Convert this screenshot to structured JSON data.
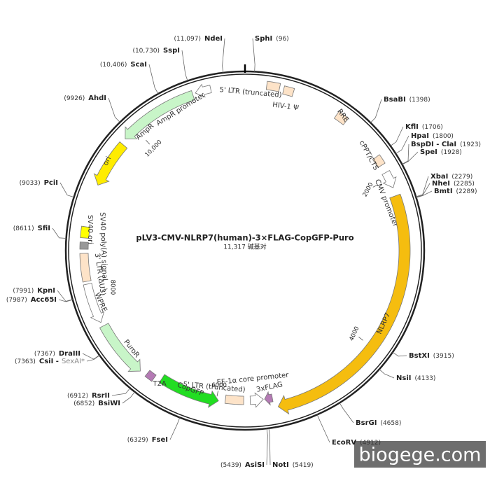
{
  "title": "pLV3-CMV-NLRP7(human)-3×FLAG-CopGFP-Puro",
  "size": "11,317 碱基对",
  "watermark": "biogege.com",
  "sites": [
    {
      "name": "SphI",
      "position": "(96)"
    },
    {
      "name": "BsaBI",
      "position": "(1398)"
    },
    {
      "name": "KflI",
      "position": "(1706)"
    },
    {
      "name": "HpaI",
      "position": "(1800)"
    },
    {
      "name": "BspDI - ClaI",
      "position": "(1923)"
    },
    {
      "name": "SpeI",
      "position": "(1928)"
    },
    {
      "name": "XbaI",
      "position": "(2279)"
    },
    {
      "name": "NheI",
      "position": "(2285)"
    },
    {
      "name": "BmtI",
      "position": "(2289)"
    },
    {
      "name": "BstXI",
      "position": "(3915)"
    },
    {
      "name": "NsiI",
      "position": "(4133)"
    },
    {
      "name": "BsrGI",
      "position": "(4658)"
    },
    {
      "name": "EcoRV",
      "position": "(4912)"
    },
    {
      "name": "NotI",
      "position": "(5419)"
    },
    {
      "name": "AsiSI",
      "position": "(5439)"
    },
    {
      "name": "FseI",
      "position": "(6329)"
    },
    {
      "name": "BsiWI",
      "position": "(6852)"
    },
    {
      "name": "RsrII",
      "position": "(6912)"
    },
    {
      "name": "CsiI -",
      "alt": "SexAI*",
      "position": "(7363)"
    },
    {
      "name": "DraIII",
      "position": "(7367)"
    },
    {
      "name": "Acc65I",
      "position": "(7987)"
    },
    {
      "name": "KpnI",
      "position": "(7991)"
    },
    {
      "name": "SfiI",
      "position": "(8611)"
    },
    {
      "name": "PciI",
      "position": "(9033)"
    },
    {
      "name": "AhdI",
      "position": "(9926)"
    },
    {
      "name": "ScaI",
      "position": "(10,406)"
    },
    {
      "name": "SspI",
      "position": "(10,730)"
    },
    {
      "name": "NdeI",
      "position": "(11,097)"
    }
  ],
  "features": [
    {
      "label": "5' LTR (truncated)"
    },
    {
      "label": "HIV-1 Ψ"
    },
    {
      "label": "RRE"
    },
    {
      "label": "cPPT/CTS"
    },
    {
      "label": "CMV promoter"
    },
    {
      "label": "NLRP7"
    },
    {
      "label": "3xFLAG"
    },
    {
      "label": "EF-1α core promoter"
    },
    {
      "label": "5' LTR (truncated)"
    },
    {
      "label": "CopGFP"
    },
    {
      "label": "T2A"
    },
    {
      "label": "PuroR"
    },
    {
      "label": "WPRE"
    },
    {
      "label": "3' LTR (ΔU3)"
    },
    {
      "label": "SV40 poly(A) signal"
    },
    {
      "label": "SV40 ori"
    },
    {
      "label": "ori"
    },
    {
      "label": "AmpR"
    },
    {
      "label": "AmpR promoter"
    }
  ],
  "scale": [
    "2000",
    "4000",
    "6000",
    "8000",
    "10,000"
  ]
}
